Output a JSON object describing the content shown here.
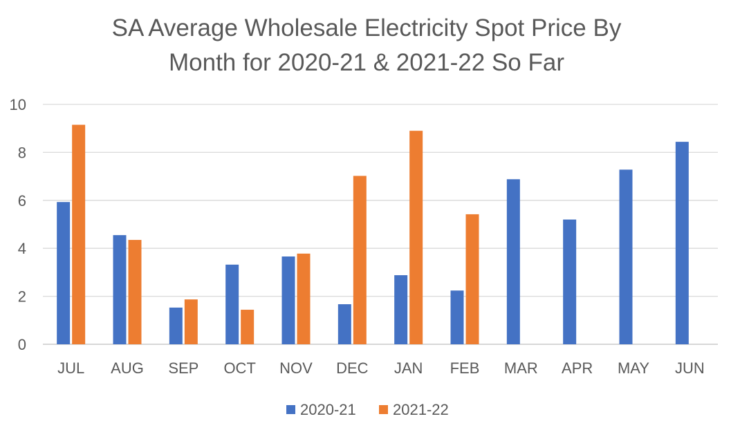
{
  "chart_data": {
    "type": "bar",
    "title_lines": [
      "SA Average Wholesale Electricity Spot Price By",
      "Month for 2020-21 & 2021-22 So Far"
    ],
    "xlabel": "",
    "ylabel": "",
    "ylim": [
      0,
      10
    ],
    "yticks": [
      "0",
      "2",
      "4",
      "6",
      "8",
      "10"
    ],
    "grid": true,
    "legend_position": "bottom",
    "categories": [
      "JUL",
      "AUG",
      "SEP",
      "OCT",
      "NOV",
      "DEC",
      "JAN",
      "FEB",
      "MAR",
      "APR",
      "MAY",
      "JUN"
    ],
    "series": [
      {
        "name": "2020-21",
        "color": "#4472C4",
        "values": [
          5.93,
          4.55,
          1.53,
          3.32,
          3.66,
          1.67,
          2.88,
          2.24,
          6.88,
          5.2,
          7.28,
          8.44
        ]
      },
      {
        "name": "2021-22",
        "color": "#ED7D31",
        "values": [
          9.15,
          4.35,
          1.87,
          1.44,
          3.78,
          7.02,
          8.9,
          5.42,
          null,
          null,
          null,
          null
        ]
      }
    ]
  }
}
